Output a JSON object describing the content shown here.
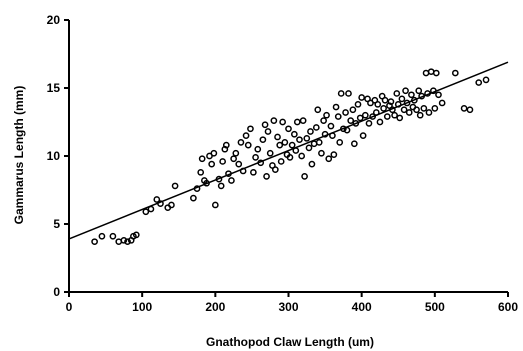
{
  "chart_data": {
    "type": "scatter",
    "title": "",
    "xlabel": "Gnathopod  Claw  Length  (um)",
    "ylabel": "Gammarus  Length  (mm)",
    "xlim": [
      0,
      600
    ],
    "ylim": [
      0,
      20
    ],
    "xticks": [
      0,
      100,
      200,
      300,
      400,
      500,
      600
    ],
    "yticks": [
      0,
      5,
      10,
      15,
      20
    ],
    "grid": false,
    "legend": "none",
    "trendline": {
      "x": [
        0,
        600
      ],
      "y": [
        3.9,
        16.9
      ]
    },
    "points": [
      [
        35,
        3.7
      ],
      [
        45,
        4.1
      ],
      [
        60,
        4.1
      ],
      [
        68,
        3.7
      ],
      [
        75,
        3.8
      ],
      [
        80,
        3.7
      ],
      [
        85,
        3.8
      ],
      [
        88,
        4.1
      ],
      [
        92,
        4.2
      ],
      [
        105,
        5.9
      ],
      [
        112,
        6.1
      ],
      [
        120,
        6.8
      ],
      [
        125,
        6.5
      ],
      [
        135,
        6.2
      ],
      [
        140,
        6.4
      ],
      [
        145,
        7.8
      ],
      [
        170,
        6.9
      ],
      [
        175,
        7.6
      ],
      [
        180,
        8.8
      ],
      [
        182,
        9.8
      ],
      [
        185,
        8.2
      ],
      [
        188,
        8.0
      ],
      [
        192,
        10.0
      ],
      [
        195,
        9.4
      ],
      [
        198,
        10.2
      ],
      [
        200,
        6.4
      ],
      [
        205,
        8.3
      ],
      [
        208,
        7.8
      ],
      [
        210,
        9.6
      ],
      [
        213,
        10.5
      ],
      [
        215,
        10.8
      ],
      [
        218,
        8.7
      ],
      [
        222,
        8.2
      ],
      [
        225,
        9.8
      ],
      [
        228,
        10.2
      ],
      [
        232,
        9.4
      ],
      [
        235,
        11.0
      ],
      [
        238,
        8.9
      ],
      [
        242,
        11.5
      ],
      [
        245,
        10.8
      ],
      [
        248,
        12.0
      ],
      [
        252,
        8.8
      ],
      [
        255,
        9.9
      ],
      [
        258,
        10.5
      ],
      [
        262,
        9.5
      ],
      [
        265,
        11.2
      ],
      [
        268,
        12.3
      ],
      [
        270,
        8.5
      ],
      [
        272,
        11.8
      ],
      [
        275,
        10.2
      ],
      [
        278,
        9.3
      ],
      [
        280,
        12.6
      ],
      [
        282,
        9.0
      ],
      [
        285,
        11.4
      ],
      [
        288,
        10.8
      ],
      [
        290,
        9.6
      ],
      [
        292,
        12.5
      ],
      [
        295,
        11.0
      ],
      [
        298,
        10.1
      ],
      [
        300,
        12.0
      ],
      [
        302,
        9.9
      ],
      [
        305,
        10.8
      ],
      [
        308,
        11.6
      ],
      [
        310,
        10.4
      ],
      [
        312,
        12.5
      ],
      [
        315,
        11.2
      ],
      [
        318,
        10.0
      ],
      [
        320,
        12.6
      ],
      [
        322,
        8.5
      ],
      [
        325,
        11.3
      ],
      [
        328,
        10.6
      ],
      [
        330,
        11.8
      ],
      [
        332,
        9.4
      ],
      [
        335,
        10.9
      ],
      [
        338,
        12.1
      ],
      [
        340,
        13.4
      ],
      [
        342,
        11.0
      ],
      [
        345,
        10.2
      ],
      [
        348,
        12.6
      ],
      [
        350,
        11.6
      ],
      [
        352,
        13.0
      ],
      [
        355,
        9.8
      ],
      [
        358,
        12.2
      ],
      [
        360,
        11.5
      ],
      [
        362,
        10.1
      ],
      [
        365,
        13.6
      ],
      [
        368,
        12.9
      ],
      [
        370,
        11.0
      ],
      [
        372,
        14.6
      ],
      [
        375,
        12.0
      ],
      [
        378,
        13.2
      ],
      [
        380,
        11.9
      ],
      [
        382,
        14.6
      ],
      [
        385,
        12.6
      ],
      [
        388,
        13.4
      ],
      [
        390,
        10.9
      ],
      [
        392,
        12.4
      ],
      [
        395,
        13.8
      ],
      [
        398,
        12.8
      ],
      [
        400,
        14.3
      ],
      [
        402,
        11.5
      ],
      [
        405,
        13.0
      ],
      [
        408,
        14.2
      ],
      [
        410,
        12.4
      ],
      [
        412,
        13.9
      ],
      [
        415,
        12.9
      ],
      [
        418,
        14.1
      ],
      [
        420,
        13.2
      ],
      [
        422,
        13.8
      ],
      [
        425,
        12.5
      ],
      [
        428,
        14.4
      ],
      [
        430,
        13.5
      ],
      [
        432,
        14.1
      ],
      [
        435,
        12.9
      ],
      [
        438,
        13.7
      ],
      [
        440,
        14.0
      ],
      [
        442,
        13.4
      ],
      [
        445,
        13.0
      ],
      [
        448,
        14.6
      ],
      [
        450,
        13.8
      ],
      [
        452,
        12.8
      ],
      [
        455,
        14.2
      ],
      [
        458,
        13.4
      ],
      [
        460,
        14.8
      ],
      [
        462,
        13.9
      ],
      [
        465,
        13.2
      ],
      [
        468,
        14.5
      ],
      [
        470,
        13.6
      ],
      [
        472,
        14.1
      ],
      [
        475,
        13.4
      ],
      [
        478,
        14.8
      ],
      [
        480,
        13.0
      ],
      [
        482,
        14.4
      ],
      [
        485,
        13.5
      ],
      [
        488,
        16.1
      ],
      [
        490,
        14.6
      ],
      [
        492,
        13.2
      ],
      [
        495,
        16.2
      ],
      [
        498,
        14.8
      ],
      [
        500,
        13.5
      ],
      [
        502,
        16.1
      ],
      [
        505,
        14.5
      ],
      [
        510,
        13.9
      ],
      [
        528,
        16.1
      ],
      [
        540,
        13.5
      ],
      [
        548,
        13.4
      ],
      [
        560,
        15.4
      ],
      [
        570,
        15.6
      ]
    ]
  }
}
